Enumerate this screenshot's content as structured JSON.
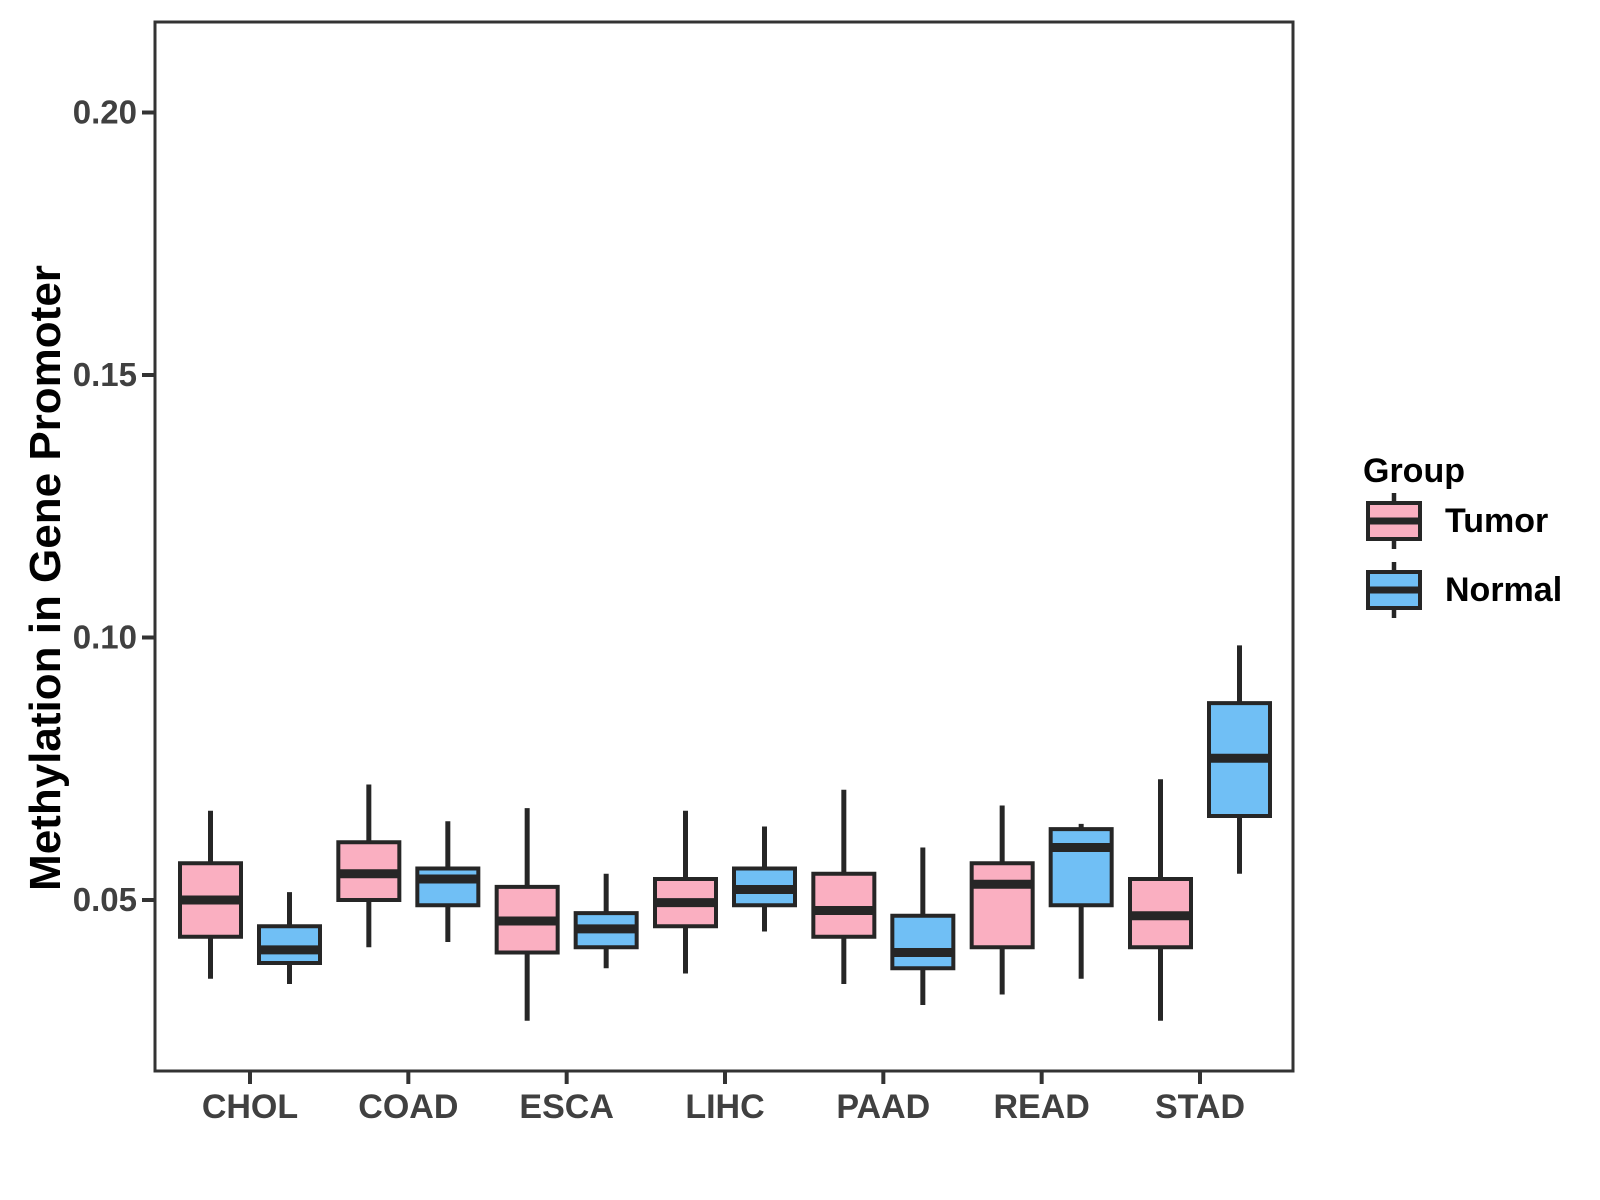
{
  "chart_data": {
    "type": "grouped_boxplot",
    "ylabel": "Methylation in Gene Promoter",
    "xlabel": "",
    "title": "",
    "legend_title": "Group",
    "legend_position": "right",
    "grid": false,
    "categories": [
      "CHOL",
      "COAD",
      "ESCA",
      "LIHC",
      "PAAD",
      "READ",
      "STAD"
    ],
    "y_ticks": [
      0.05,
      0.1,
      0.15,
      0.2
    ],
    "y_tick_labels": [
      "0.05",
      "0.10",
      "0.15",
      "0.20"
    ],
    "ylim": [
      0.017,
      0.217
    ],
    "groups": [
      {
        "name": "Tumor",
        "color": "#FAAFC1",
        "boxes": [
          {
            "category": "CHOL",
            "low": 0.035,
            "q1": 0.043,
            "median": 0.05,
            "q3": 0.057,
            "high": 0.067
          },
          {
            "category": "COAD",
            "low": 0.041,
            "q1": 0.05,
            "median": 0.055,
            "q3": 0.061,
            "high": 0.072
          },
          {
            "category": "ESCA",
            "low": 0.027,
            "q1": 0.04,
            "median": 0.046,
            "q3": 0.0525,
            "high": 0.0675
          },
          {
            "category": "LIHC",
            "low": 0.036,
            "q1": 0.045,
            "median": 0.0495,
            "q3": 0.054,
            "high": 0.067
          },
          {
            "category": "PAAD",
            "low": 0.034,
            "q1": 0.043,
            "median": 0.048,
            "q3": 0.055,
            "high": 0.071
          },
          {
            "category": "READ",
            "low": 0.032,
            "q1": 0.041,
            "median": 0.053,
            "q3": 0.057,
            "high": 0.068
          },
          {
            "category": "STAD",
            "low": 0.027,
            "q1": 0.041,
            "median": 0.047,
            "q3": 0.054,
            "high": 0.073
          }
        ]
      },
      {
        "name": "Normal",
        "color": "#70BFF5",
        "boxes": [
          {
            "category": "CHOL",
            "low": 0.034,
            "q1": 0.038,
            "median": 0.0405,
            "q3": 0.045,
            "high": 0.0515
          },
          {
            "category": "COAD",
            "low": 0.042,
            "q1": 0.049,
            "median": 0.054,
            "q3": 0.056,
            "high": 0.065
          },
          {
            "category": "ESCA",
            "low": 0.037,
            "q1": 0.041,
            "median": 0.0445,
            "q3": 0.0475,
            "high": 0.055
          },
          {
            "category": "LIHC",
            "low": 0.044,
            "q1": 0.049,
            "median": 0.052,
            "q3": 0.056,
            "high": 0.064
          },
          {
            "category": "PAAD",
            "low": 0.03,
            "q1": 0.037,
            "median": 0.04,
            "q3": 0.047,
            "high": 0.06
          },
          {
            "category": "READ",
            "low": 0.035,
            "q1": 0.049,
            "median": 0.06,
            "q3": 0.0635,
            "high": 0.0645
          },
          {
            "category": "STAD",
            "low": 0.055,
            "q1": 0.066,
            "median": 0.077,
            "q3": 0.0875,
            "high": 0.0985
          }
        ]
      }
    ]
  },
  "style": {
    "box_outline": "#262626",
    "panel_border": "#333333",
    "tick_color": "#333333",
    "axis_text_color": "#404040",
    "title_color": "#000000",
    "background": "#ffffff"
  }
}
